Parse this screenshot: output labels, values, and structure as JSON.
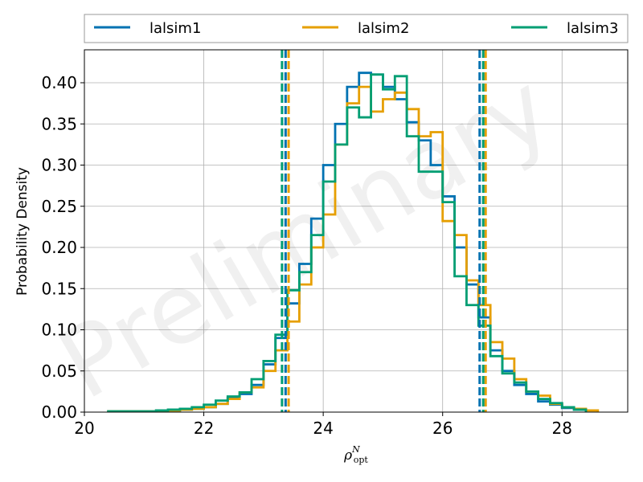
{
  "chart_data": {
    "type": "step-histogram",
    "xlabel_base": "ρ",
    "xlabel_sup": "N",
    "xlabel_sub": "opt",
    "ylabel": "Probability Density",
    "watermark": "Preliminary",
    "xlim": [
      20,
      29.1
    ],
    "ylim": [
      0,
      0.44
    ],
    "xticks": [
      20,
      22,
      24,
      26,
      28
    ],
    "yticks": [
      0.0,
      0.05,
      0.1,
      0.15,
      0.2,
      0.25,
      0.3,
      0.35,
      0.4
    ],
    "ytick_labels": [
      "0.00",
      "0.05",
      "0.10",
      "0.15",
      "0.20",
      "0.25",
      "0.30",
      "0.35",
      "0.40"
    ],
    "grid": true,
    "legend_position": "top, outside, 3 columns",
    "series": [
      {
        "name": "lalsim1",
        "color": "#0072B2",
        "edges": [
          20.4,
          20.6,
          20.8,
          21.0,
          21.2,
          21.4,
          21.6,
          21.8,
          22.0,
          22.2,
          22.4,
          22.6,
          22.8,
          23.0,
          23.2,
          23.4,
          23.6,
          23.8,
          24.0,
          24.2,
          24.4,
          24.6,
          24.8,
          25.0,
          25.2,
          25.4,
          25.6,
          25.8,
          26.0,
          26.2,
          26.4,
          26.6,
          26.8,
          27.0,
          27.2,
          27.4,
          27.6,
          27.8,
          28.0,
          28.2,
          28.4
        ],
        "values": [
          0.001,
          0.001,
          0.001,
          0.001,
          0.001,
          0.002,
          0.003,
          0.004,
          0.006,
          0.01,
          0.017,
          0.022,
          0.033,
          0.058,
          0.09,
          0.132,
          0.18,
          0.235,
          0.3,
          0.35,
          0.395,
          0.412,
          0.41,
          0.395,
          0.38,
          0.352,
          0.33,
          0.3,
          0.262,
          0.2,
          0.155,
          0.115,
          0.075,
          0.05,
          0.033,
          0.022,
          0.013,
          0.009,
          0.005,
          0.003
        ]
      },
      {
        "name": "lalsim2",
        "color": "#E69F00",
        "edges": [
          20.4,
          20.6,
          20.8,
          21.0,
          21.2,
          21.4,
          21.6,
          21.8,
          22.0,
          22.2,
          22.4,
          22.6,
          22.8,
          23.0,
          23.2,
          23.4,
          23.6,
          23.8,
          24.0,
          24.2,
          24.4,
          24.6,
          24.8,
          25.0,
          25.2,
          25.4,
          25.6,
          25.8,
          26.0,
          26.2,
          26.4,
          26.6,
          26.8,
          27.0,
          27.2,
          27.4,
          27.6,
          27.8,
          28.0,
          28.2,
          28.4,
          28.6
        ],
        "values": [
          0.001,
          0.001,
          0.001,
          0.001,
          0.001,
          0.002,
          0.003,
          0.004,
          0.006,
          0.01,
          0.016,
          0.024,
          0.03,
          0.05,
          0.075,
          0.11,
          0.155,
          0.2,
          0.24,
          0.325,
          0.375,
          0.395,
          0.365,
          0.38,
          0.388,
          0.368,
          0.335,
          0.34,
          0.232,
          0.215,
          0.16,
          0.13,
          0.085,
          0.065,
          0.04,
          0.025,
          0.02,
          0.01,
          0.006,
          0.004,
          0.002
        ]
      },
      {
        "name": "lalsim3",
        "color": "#009E73",
        "edges": [
          20.4,
          20.6,
          20.8,
          21.0,
          21.2,
          21.4,
          21.6,
          21.8,
          22.0,
          22.2,
          22.4,
          22.6,
          22.8,
          23.0,
          23.2,
          23.4,
          23.6,
          23.8,
          24.0,
          24.2,
          24.4,
          24.6,
          24.8,
          25.0,
          25.2,
          25.4,
          25.6,
          25.8,
          26.0,
          26.2,
          26.4,
          26.6,
          26.8,
          27.0,
          27.2,
          27.4,
          27.6,
          27.8,
          28.0,
          28.2,
          28.4
        ],
        "values": [
          0.001,
          0.001,
          0.001,
          0.001,
          0.002,
          0.003,
          0.004,
          0.006,
          0.009,
          0.014,
          0.019,
          0.024,
          0.04,
          0.062,
          0.094,
          0.148,
          0.17,
          0.215,
          0.28,
          0.325,
          0.37,
          0.358,
          0.41,
          0.392,
          0.408,
          0.335,
          0.292,
          0.292,
          0.255,
          0.165,
          0.13,
          0.105,
          0.068,
          0.047,
          0.036,
          0.025,
          0.016,
          0.011,
          0.006,
          0.003
        ]
      }
    ],
    "vlines": [
      {
        "series": "lalsim1",
        "color": "#0072B2",
        "x": [
          23.37,
          26.62
        ]
      },
      {
        "series": "lalsim2",
        "color": "#E69F00",
        "x": [
          23.42,
          26.72
        ]
      },
      {
        "series": "lalsim3",
        "color": "#009E73",
        "x": [
          23.31,
          26.68
        ]
      }
    ]
  }
}
